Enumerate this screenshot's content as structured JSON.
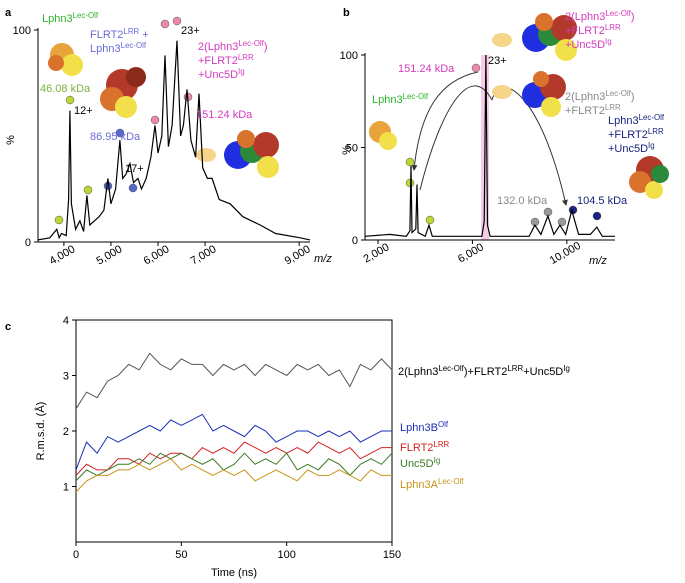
{
  "chart_data": [
    {
      "type": "line",
      "panel": "a",
      "ylabel": "%",
      "xlabel": "m/z",
      "xlim": [
        3450,
        9230
      ],
      "xticks": [
        {
          "value": 4000,
          "label": "4,000"
        },
        {
          "value": 5000,
          "label": "5,000"
        },
        {
          "value": 6000,
          "label": "6,000"
        },
        {
          "value": 7000,
          "label": "7,000"
        },
        {
          "value": 9000,
          "label": "9,000"
        }
      ],
      "ylim": [
        0,
        100
      ],
      "yticks": [
        0,
        100
      ],
      "x": [
        3450,
        3700,
        3850,
        3900,
        3950,
        4050,
        4100,
        4128,
        4160,
        4250,
        4340,
        4420,
        4489,
        4550,
        4650,
        4750,
        4850,
        4936,
        5000,
        5100,
        5191,
        5250,
        5320,
        5404,
        5480,
        5574,
        5650,
        5750,
        5850,
        5936,
        6000,
        6080,
        6149,
        6220,
        6300,
        6404,
        6480,
        6540,
        6617,
        6700,
        6800,
        6872,
        6950,
        7050,
        7149,
        7300,
        7532,
        7800,
        8170,
        8500,
        9021,
        9230
      ],
      "series": [
        {
          "color": "#000000",
          "values": [
            1,
            2,
            6,
            2,
            4,
            3,
            20,
            62,
            18,
            6,
            10,
            5,
            22,
            8,
            10,
            12,
            15,
            30,
            18,
            25,
            48,
            30,
            32,
            37,
            28,
            30,
            25,
            30,
            40,
            55,
            42,
            50,
            88,
            45,
            55,
            95,
            50,
            55,
            72,
            48,
            40,
            70,
            35,
            30,
            30,
            20,
            18,
            12,
            8,
            4,
            2,
            1
          ]
        }
      ],
      "annotations": [
        {
          "color": "#2db52d",
          "lines": [
            [
              "Lphn3",
              "Lec-Olf"
            ]
          ]
        },
        {
          "color": "#6a6ad8",
          "lines": [
            [
              "FLRT2",
              "LRR",
              " +"
            ],
            [
              "Lphn3",
              "Lec-Olf"
            ]
          ]
        },
        {
          "color": "#7cb342",
          "lines": [
            [
              "46.08 kDa"
            ]
          ]
        },
        {
          "color": "#000000",
          "lines": [
            [
              "12+"
            ]
          ]
        },
        {
          "color": "#6a6ad8",
          "lines": [
            [
              "86.95 kDa"
            ]
          ]
        },
        {
          "color": "#000000",
          "lines": [
            [
              "17+"
            ]
          ]
        },
        {
          "color": "#000000",
          "lines": [
            [
              "23+"
            ]
          ]
        },
        {
          "color": "#d43bbf",
          "lines": [
            [
              "2(Lphn3",
              "Lec-Olf",
              ")"
            ],
            [
              "+FLRT2",
              "LRR"
            ],
            [
              "+Unc5D",
              "Ig"
            ]
          ]
        },
        {
          "color": "#d43bbf",
          "lines": [
            [
              "151.24 kDa"
            ]
          ]
        }
      ]
    },
    {
      "type": "line",
      "panel": "b",
      "ylabel": "%",
      "xlabel": "m/z",
      "xlim": [
        1450,
        12040
      ],
      "xticks": [
        {
          "value": 2000,
          "label": "2,000"
        },
        {
          "value": 6000,
          "label": "6,000"
        },
        {
          "value": 10000,
          "label": "10,000"
        }
      ],
      "ylim": [
        0,
        100
      ],
      "yticks": [
        0,
        50,
        100
      ],
      "x": [
        1450,
        2500,
        3200,
        3350,
        3397,
        3440,
        3600,
        3651,
        3700,
        4000,
        4159,
        4300,
        5000,
        6400,
        6500,
        6571,
        6640,
        6750,
        7500,
        8400,
        8646,
        8900,
        9196,
        9450,
        9704,
        9950,
        10212,
        10500,
        11000,
        11270,
        11500,
        12040
      ],
      "series": [
        {
          "color": "#000000",
          "values": [
            2,
            3,
            2,
            5,
            40,
            4,
            6,
            30,
            4,
            2,
            8,
            2,
            2,
            2,
            10,
            100,
            8,
            2,
            2,
            2,
            8,
            3,
            13,
            3,
            8,
            3,
            16,
            3,
            3,
            7,
            2,
            2
          ]
        }
      ],
      "annotations": [
        {
          "color": "#d43bbf",
          "lines": [
            [
              "151.24 kDa"
            ]
          ]
        },
        {
          "color": "#000000",
          "lines": [
            [
              "23+"
            ]
          ]
        },
        {
          "color": "#d43bbf",
          "lines": [
            [
              "2(Lphn3",
              "Lec-Olf",
              ")"
            ],
            [
              "+FLRT2",
              "LRR"
            ],
            [
              "+Unc5D",
              "Ig"
            ]
          ]
        },
        {
          "color": "#8a8a8a",
          "lines": [
            [
              "2(Lphn3",
              "Lec-Olf",
              ")"
            ],
            [
              "+FLRT2",
              "LRR"
            ]
          ]
        },
        {
          "color": "#2db52d",
          "lines": [
            [
              "Lphn3",
              "Lec-Olf"
            ]
          ]
        },
        {
          "color": "#8a8a8a",
          "lines": [
            [
              "132.0 kDa"
            ]
          ]
        },
        {
          "color": "#1a237e",
          "lines": [
            [
              "104.5 kDa"
            ]
          ]
        },
        {
          "color": "#1a237e",
          "lines": [
            [
              "Lphn3",
              "Lec-Olf"
            ],
            [
              "+FLRT2",
              "LRR"
            ],
            [
              "+Unc5D",
              "Ig"
            ]
          ]
        }
      ]
    },
    {
      "type": "line",
      "panel": "c",
      "ylabel": "R.m.s.d. (Å)",
      "xlabel": "Time (ns)",
      "xlim": [
        0,
        150
      ],
      "xticks": [
        0,
        50,
        100,
        150
      ],
      "ylim": [
        0,
        4
      ],
      "yticks": [
        1,
        2,
        3,
        4
      ],
      "x": [
        0,
        5,
        10,
        15,
        20,
        25,
        30,
        35,
        40,
        45,
        50,
        55,
        60,
        65,
        70,
        75,
        80,
        85,
        90,
        95,
        100,
        105,
        110,
        115,
        120,
        125,
        130,
        135,
        140,
        145,
        150
      ],
      "series": [
        {
          "name": [
            "2(Lphn3",
            "Lec-Olf",
            ")+FLRT2",
            "LRR",
            "+Unc5D",
            "Ig"
          ],
          "color": "#555555",
          "values": [
            2.4,
            2.7,
            2.6,
            2.9,
            3.0,
            3.2,
            3.1,
            3.4,
            3.2,
            3.1,
            3.3,
            3.2,
            3.2,
            3.0,
            3.2,
            3.1,
            3.2,
            3.0,
            3.2,
            3.1,
            3.0,
            3.2,
            3.1,
            3.2,
            3.0,
            3.1,
            2.8,
            3.2,
            3.1,
            3.3,
            3.1
          ]
        },
        {
          "name": [
            "Lphn3B",
            "Olf"
          ],
          "color": "#1c2fb8",
          "values": [
            1.3,
            1.8,
            1.6,
            1.9,
            1.8,
            1.9,
            2.0,
            2.1,
            2.0,
            2.2,
            2.1,
            2.2,
            2.3,
            2.0,
            2.1,
            2.0,
            1.9,
            2.1,
            2.0,
            1.8,
            1.9,
            2.0,
            2.0,
            1.9,
            2.0,
            1.9,
            2.0,
            1.8,
            1.9,
            2.0,
            2.0
          ]
        },
        {
          "name": [
            "FLRT2",
            "LRR"
          ],
          "color": "#d42020",
          "values": [
            1.2,
            1.4,
            1.3,
            1.3,
            1.5,
            1.5,
            1.4,
            1.6,
            1.5,
            1.6,
            1.6,
            1.5,
            1.7,
            1.6,
            1.7,
            1.6,
            1.8,
            1.7,
            1.6,
            1.7,
            1.6,
            1.7,
            1.6,
            1.8,
            1.7,
            1.6,
            1.7,
            1.5,
            1.6,
            1.7,
            1.7
          ]
        },
        {
          "name": [
            "Unc5D",
            "Ig"
          ],
          "color": "#3a7a22",
          "values": [
            1.1,
            1.3,
            1.2,
            1.3,
            1.4,
            1.4,
            1.5,
            1.4,
            1.6,
            1.5,
            1.6,
            1.5,
            1.4,
            1.5,
            1.3,
            1.4,
            1.6,
            1.4,
            1.5,
            1.4,
            1.6,
            1.3,
            1.4,
            1.3,
            1.5,
            1.4,
            1.2,
            1.4,
            1.5,
            1.4,
            1.6
          ]
        },
        {
          "name": [
            "Lphn3A",
            "Lec-Olf"
          ],
          "color": "#c8941a",
          "values": [
            0.9,
            1.1,
            1.2,
            1.2,
            1.3,
            1.3,
            1.4,
            1.3,
            1.4,
            1.5,
            1.3,
            1.4,
            1.3,
            1.2,
            1.3,
            1.2,
            1.3,
            1.1,
            1.2,
            1.3,
            1.2,
            1.1,
            1.3,
            1.2,
            1.2,
            1.3,
            1.2,
            1.1,
            1.3,
            1.2,
            1.2
          ]
        }
      ]
    }
  ]
}
